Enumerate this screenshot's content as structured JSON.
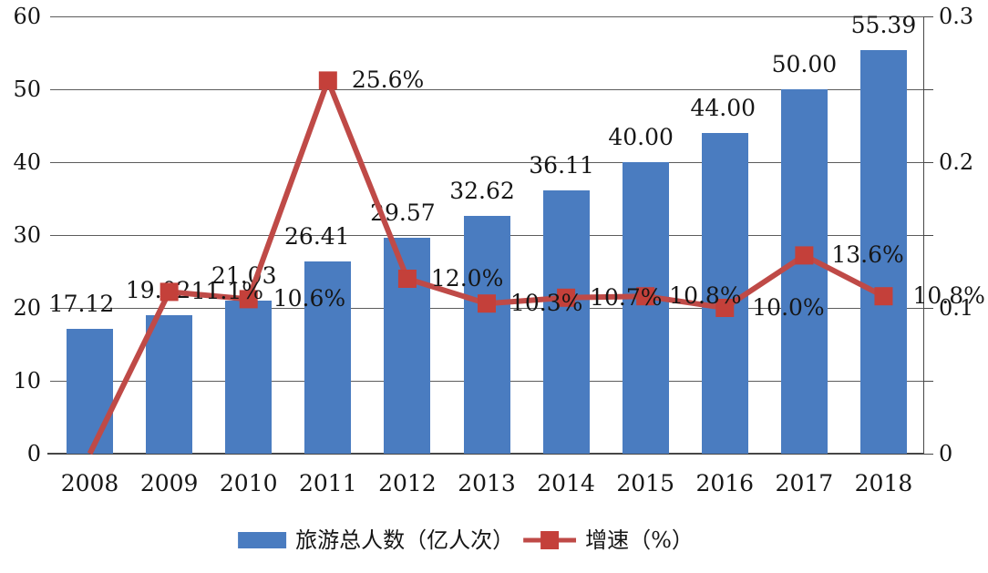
{
  "chart_data": {
    "type": "combo-bar-line",
    "title": "",
    "categories": [
      "2008",
      "2009",
      "2010",
      "2011",
      "2012",
      "2013",
      "2014",
      "2015",
      "2016",
      "2017",
      "2018"
    ],
    "series": [
      {
        "name": "旅游总人数（亿人次）",
        "type": "bar",
        "axis": "left",
        "values": [
          17.12,
          19.02,
          21.03,
          26.41,
          29.57,
          32.62,
          36.11,
          40.0,
          44.0,
          50.0,
          55.39
        ],
        "labels": [
          "17.12",
          "19.02",
          "21.03",
          "26.41",
          "29.57",
          "32.62",
          "36.11",
          "40.00",
          "44.00",
          "50.00",
          "55.39"
        ],
        "label_dx": [
          -9,
          -12,
          -5,
          -12,
          -5,
          -5,
          -5,
          -5,
          -2,
          0,
          0
        ],
        "color": "#4a7cc0"
      },
      {
        "name": "增速（%）",
        "type": "line",
        "axis": "right",
        "values": [
          0,
          0.111,
          0.106,
          0.256,
          0.12,
          0.103,
          0.107,
          0.108,
          0.1,
          0.136,
          0.108
        ],
        "labels": [
          "",
          "11.1%",
          "10.6%",
          "25.6%",
          "12.0%",
          "10.3%",
          "10.7%",
          "10.8%",
          "10.0%",
          "13.6%",
          "10.8%"
        ],
        "label_dx": [
          0,
          24,
          27,
          26,
          26,
          26,
          26,
          26,
          30,
          30,
          32
        ],
        "color": "#bf4a47",
        "marker": "square",
        "marker_color": "#c4403a"
      }
    ],
    "left_axis": {
      "min": 0,
      "max": 60,
      "step": 10,
      "tick_labels": [
        "0",
        "10",
        "20",
        "30",
        "40",
        "50",
        "60"
      ]
    },
    "right_axis": {
      "min": 0,
      "max": 0.3,
      "labeled_values": [
        0,
        0.1,
        0.2,
        0.3
      ],
      "tick_labels": [
        "0",
        "0.1",
        "0.2",
        "0.3"
      ]
    },
    "grid": true,
    "legend_position": "bottom"
  },
  "colors": {
    "bar": "#4a7cc0",
    "line": "#bf4a47",
    "marker": "#c4403a",
    "grid": "#5c5c5c",
    "axis": "#474747",
    "text": "#161616",
    "background": "#ffffff"
  }
}
